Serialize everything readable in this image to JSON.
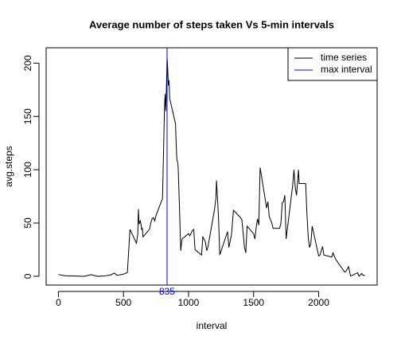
{
  "chart_data": {
    "type": "line",
    "title": "Average number of steps taken Vs 5-min intervals",
    "x_label": "interval",
    "y_label": "avg.steps",
    "x": [
      0,
      50,
      100,
      150,
      200,
      250,
      300,
      350,
      400,
      430,
      450,
      500,
      530,
      550,
      600,
      610,
      615,
      620,
      630,
      640,
      645,
      650,
      700,
      710,
      720,
      730,
      740,
      750,
      800,
      810,
      815,
      820,
      825,
      830,
      835,
      840,
      845,
      850,
      855,
      900,
      905,
      910,
      915,
      920,
      930,
      940,
      950,
      1000,
      1010,
      1030,
      1040,
      1050,
      1100,
      1110,
      1130,
      1140,
      1150,
      1200,
      1210,
      1215,
      1230,
      1240,
      1300,
      1310,
      1330,
      1345,
      1400,
      1410,
      1430,
      1440,
      1450,
      1500,
      1510,
      1520,
      1530,
      1540,
      1550,
      1600,
      1610,
      1620,
      1640,
      1650,
      1700,
      1710,
      1720,
      1730,
      1740,
      1750,
      1800,
      1810,
      1820,
      1830,
      1845,
      1850,
      1900,
      1910,
      1920,
      1930,
      1940,
      1950,
      2000,
      2010,
      2030,
      2040,
      2100,
      2110,
      2130,
      2200,
      2210,
      2230,
      2245,
      2300,
      2310,
      2330,
      2345,
      2355
    ],
    "series": [
      {
        "name": "time series",
        "color": "#000000",
        "values": [
          1.7,
          0.5,
          0.3,
          0.2,
          0,
          1.5,
          0,
          0.3,
          1.2,
          3,
          0.8,
          2,
          3.5,
          44,
          31,
          40,
          63,
          49,
          52,
          44,
          45,
          37,
          44,
          50,
          54,
          55,
          52,
          57,
          73,
          129,
          157,
          171,
          155,
          177,
          206,
          195,
          179,
          184,
          167,
          143,
          124,
          110,
          108,
          103,
          66,
          24,
          35,
          40,
          38,
          43,
          44,
          25,
          20,
          37,
          32,
          24,
          28,
          63,
          73,
          90,
          56,
          20,
          42,
          27,
          39,
          62,
          55,
          53,
          27,
          22,
          47,
          40,
          35,
          46,
          54,
          48,
          102,
          64,
          70,
          56,
          50,
          45,
          45,
          50,
          69,
          70,
          76,
          35,
          85,
          100,
          83,
          76,
          100,
          87,
          87,
          58,
          36,
          27,
          31,
          47,
          19,
          20,
          28,
          20,
          18,
          22,
          16,
          4,
          4.6,
          9,
          0.2,
          3.3,
          0,
          2.6,
          0.6,
          1.1
        ]
      }
    ],
    "vlines": [
      {
        "name": "max interval",
        "x": 835,
        "color": "#0000ff"
      }
    ],
    "xlim": [
      -94.2,
      2449.2
    ],
    "xticks": [
      0,
      500,
      1000,
      1500,
      2000
    ],
    "ylim": [
      -8.25,
      214.42
    ],
    "yticks": [
      0,
      50,
      100,
      150,
      200
    ],
    "legend": "top-right"
  }
}
